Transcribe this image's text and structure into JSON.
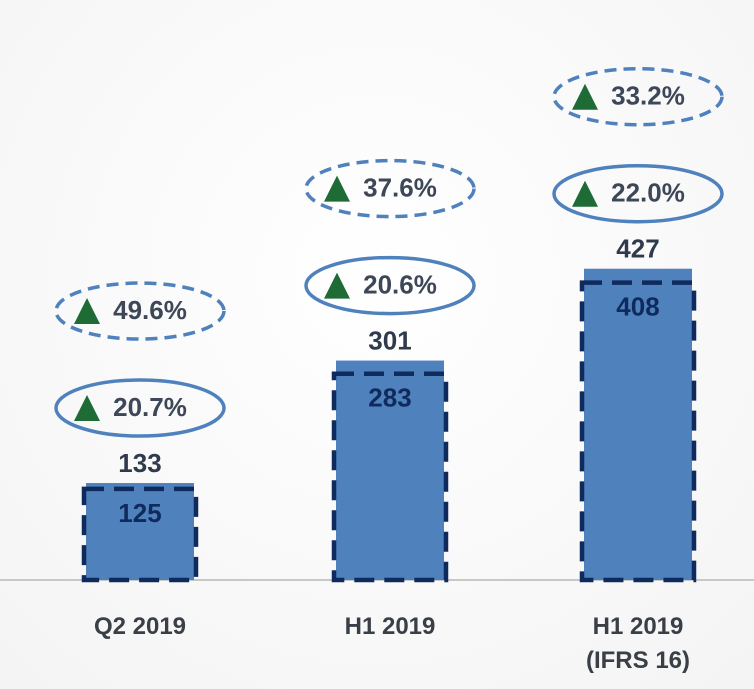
{
  "chart_data": {
    "type": "bar",
    "categories": [
      "Q2 2019",
      "H1 2019",
      "H1 2019 (IFRS 16)"
    ],
    "values": [
      133,
      301,
      427
    ],
    "color": "#4f81bd",
    "comparison_values": [
      125,
      283,
      408
    ],
    "comparison_color": "#0f2a5c",
    "growth": {
      "values": [
        20.7,
        20.6,
        22.0
      ],
      "value_labels": [
        "20.7%",
        "20.6%",
        "22.0%"
      ],
      "color": "#4f81bd"
    },
    "comparison_growth": {
      "values": [
        49.6,
        37.6,
        33.2
      ],
      "value_labels": [
        "49.6%",
        "37.6%",
        "33.2%"
      ],
      "color": "#4f81bd"
    },
    "marker_color": "#1e6b35"
  }
}
